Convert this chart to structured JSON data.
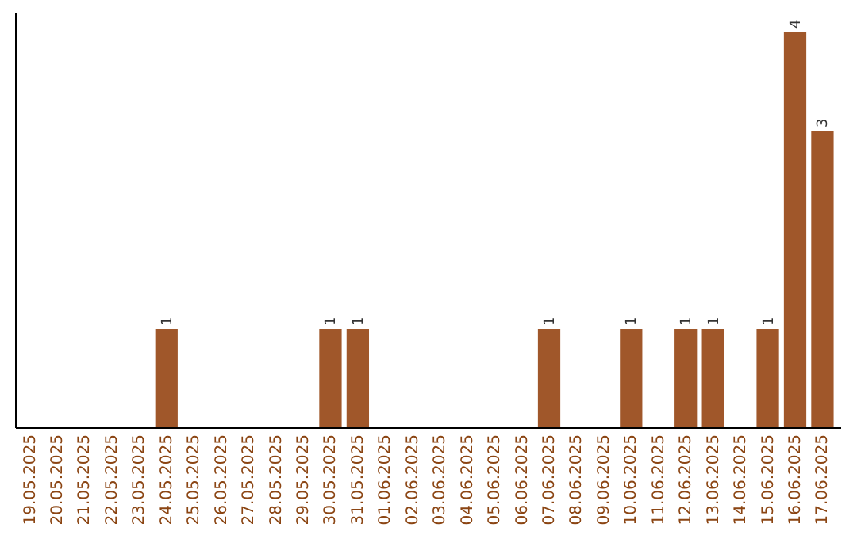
{
  "chart_data": {
    "type": "bar",
    "categories": [
      "19.05.2025",
      "20.05.2025",
      "21.05.2025",
      "22.05.2025",
      "23.05.2025",
      "24.05.2025",
      "25.05.2025",
      "26.05.2025",
      "27.05.2025",
      "28.05.2025",
      "29.05.2025",
      "30.05.2025",
      "31.05.2025",
      "01.06.2025",
      "02.06.2025",
      "03.06.2025",
      "04.06.2025",
      "05.06.2025",
      "06.06.2025",
      "07.06.2025",
      "08.06.2025",
      "09.06.2025",
      "10.06.2025",
      "11.06.2025",
      "12.06.2025",
      "13.06.2025",
      "14.06.2025",
      "15.06.2025",
      "16.06.2025",
      "17.06.2025"
    ],
    "values": [
      0,
      0,
      0,
      0,
      0,
      1,
      0,
      0,
      0,
      0,
      0,
      1,
      1,
      0,
      0,
      0,
      0,
      0,
      0,
      1,
      0,
      0,
      1,
      0,
      1,
      1,
      0,
      1,
      4,
      3
    ],
    "value_labels": [
      null,
      null,
      null,
      null,
      null,
      "1",
      null,
      null,
      null,
      null,
      null,
      "1",
      "1",
      null,
      null,
      null,
      null,
      null,
      null,
      "1",
      null,
      null,
      "1",
      null,
      "1",
      "1",
      null,
      "1",
      "4",
      "3"
    ],
    "color": "#a0572a"
  }
}
